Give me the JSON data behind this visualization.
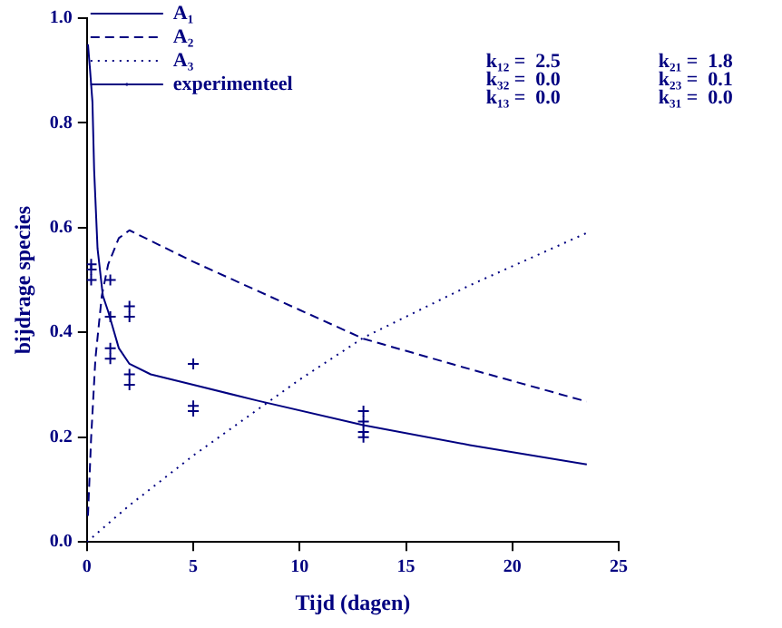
{
  "chart_data": {
    "type": "line",
    "xlabel": "Tijd (dagen)",
    "ylabel": "bijdrage species",
    "xlim": [
      0,
      25
    ],
    "ylim": [
      0,
      1
    ],
    "xticks": [
      0,
      5,
      10,
      15,
      20,
      25
    ],
    "yticks": [
      {
        "value": 0,
        "label": "0.0"
      },
      {
        "value": 0.2,
        "label": "0.2"
      },
      {
        "value": 0.4,
        "label": "0.4"
      },
      {
        "value": 0.6,
        "label": "0.6"
      },
      {
        "value": 0.8,
        "label": "0.8"
      },
      {
        "value": 1,
        "label": "1.0"
      }
    ],
    "grid": false,
    "legend": "top left",
    "annotations": [
      "k₁₂ =  2.5",
      "k₂₁ =  1.8",
      "k₃₂ =  0.0",
      "k₂₃ =  0.1",
      "k₁₃ =  0.0",
      "k₃₁ =  0.0"
    ],
    "series": [
      {
        "name": "A₁",
        "line_style": "solid",
        "marker": "none",
        "color": "#000080",
        "x": [
          0.05,
          0.15,
          0.26,
          0.34,
          0.5,
          0.75,
          1,
          1.5,
          2,
          3,
          5,
          8,
          13,
          18,
          23.5
        ],
        "values": [
          0.95,
          0.9,
          0.84,
          0.71,
          0.56,
          0.47,
          0.44,
          0.37,
          0.34,
          0.32,
          0.3,
          0.27,
          0.223,
          0.185,
          0.148
        ]
      },
      {
        "name": "A₂",
        "line_style": "dashed",
        "marker": "none",
        "color": "#000080",
        "x": [
          0.05,
          0.2,
          0.4,
          0.7,
          1,
          1.5,
          2,
          5,
          10,
          13,
          18,
          23.5
        ],
        "values": [
          0.05,
          0.2,
          0.35,
          0.47,
          0.53,
          0.58,
          0.595,
          0.535,
          0.443,
          0.388,
          0.33,
          0.268
        ]
      },
      {
        "name": "A₃",
        "line_style": "dotted",
        "marker": "none",
        "color": "#000080",
        "x": [
          0,
          2,
          5,
          10,
          13,
          18,
          23.5
        ],
        "values": [
          0,
          0.07,
          0.165,
          0.31,
          0.39,
          0.49,
          0.59
        ]
      },
      {
        "name": "experimenteel",
        "type": "scatter",
        "marker": "cross",
        "color": "#000080",
        "x": [
          0.2,
          0.2,
          0.2,
          1.1,
          1.1,
          1.1,
          1.1,
          2,
          2,
          2,
          2,
          5,
          5,
          5,
          13,
          13,
          13,
          13
        ],
        "values": [
          0.53,
          0.52,
          0.5,
          0.5,
          0.43,
          0.37,
          0.35,
          0.45,
          0.43,
          0.32,
          0.3,
          0.34,
          0.26,
          0.25,
          0.25,
          0.23,
          0.21,
          0.2
        ]
      }
    ]
  }
}
